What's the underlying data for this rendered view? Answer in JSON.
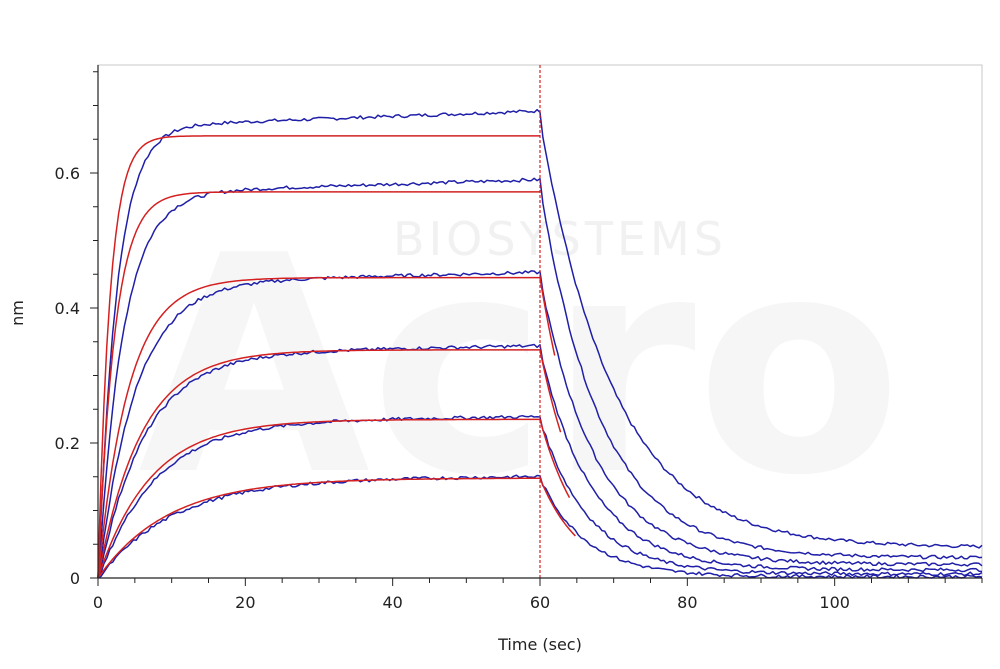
{
  "chart_data": {
    "type": "line",
    "title": "",
    "xlabel": "Time (sec)",
    "ylabel": "nm",
    "xlim": [
      0,
      120
    ],
    "ylim": [
      0,
      0.76
    ],
    "xticks": [
      0,
      20,
      40,
      60,
      80,
      100
    ],
    "xtick_labels": [
      "0",
      "20",
      "40",
      "60",
      "80",
      "100"
    ],
    "yticks": [
      0,
      0.2,
      0.4,
      0.6
    ],
    "ytick_labels": [
      "0",
      "0.2",
      "0.4",
      "0.6"
    ],
    "grid": false,
    "legend": "none",
    "watermark": "Acro BIOSYSTEMS",
    "association_end_marker": {
      "x": 60,
      "color": "#d42020",
      "style": "dashed"
    },
    "series_colors": {
      "measured": "#1f1fa8",
      "fit": "#d42020"
    },
    "series": [
      {
        "kind": "measured",
        "plateau": 0.68,
        "kon": 0.4,
        "koff": 0.1,
        "baseline": 0.045
      },
      {
        "kind": "fit",
        "plateau": 0.655,
        "kon": 0.62,
        "koff": 0.13,
        "end_x": 60
      },
      {
        "kind": "measured",
        "plateau": 0.58,
        "kon": 0.3,
        "koff": 0.12,
        "baseline": 0.03
      },
      {
        "kind": "fit",
        "plateau": 0.572,
        "kon": 0.44,
        "koff": 0.14,
        "end_x": 60
      },
      {
        "kind": "measured",
        "plateau": 0.445,
        "kon": 0.2,
        "koff": 0.13,
        "baseline": 0.02
      },
      {
        "kind": "fit",
        "plateau": 0.445,
        "kon": 0.24,
        "koff": 0.15,
        "end_x": 62
      },
      {
        "kind": "measured",
        "plateau": 0.338,
        "kon": 0.16,
        "koff": 0.14,
        "baseline": 0.012
      },
      {
        "kind": "fit",
        "plateau": 0.338,
        "kon": 0.17,
        "koff": 0.16,
        "end_x": 63
      },
      {
        "kind": "measured",
        "plateau": 0.235,
        "kon": 0.13,
        "koff": 0.15,
        "baseline": 0.006
      },
      {
        "kind": "fit",
        "plateau": 0.235,
        "kon": 0.14,
        "koff": 0.17,
        "end_x": 64
      },
      {
        "kind": "measured",
        "plateau": 0.148,
        "kon": 0.1,
        "koff": 0.16,
        "baseline": 0.002
      },
      {
        "kind": "fit",
        "plateau": 0.148,
        "kon": 0.105,
        "koff": 0.18,
        "end_x": 65
      }
    ]
  }
}
